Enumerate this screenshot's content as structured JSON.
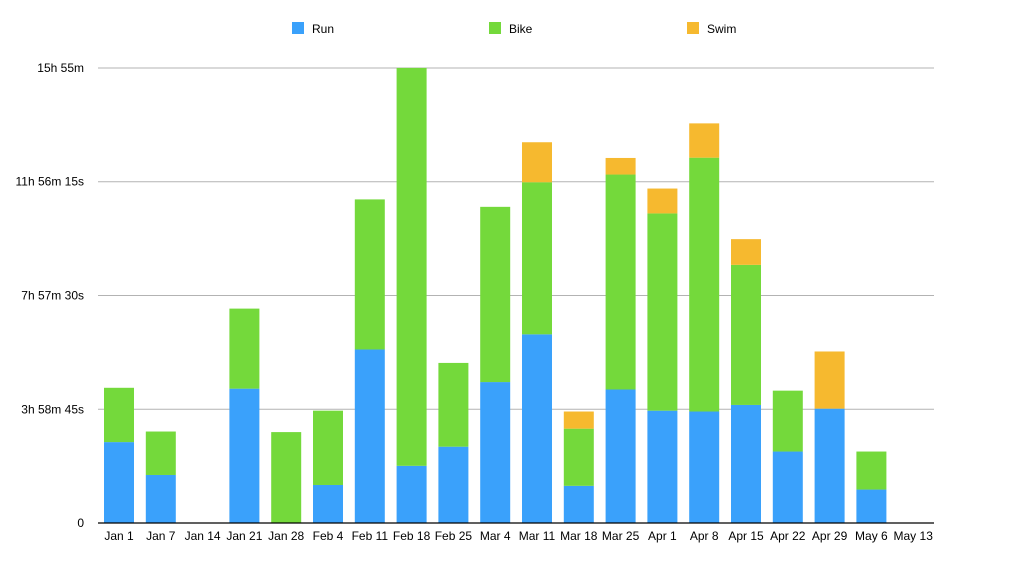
{
  "chart_data": {
    "type": "bar",
    "stacked": true,
    "categories": [
      "Jan 1",
      "Jan 7",
      "Jan 14",
      "Jan 21",
      "Jan 28",
      "Feb 4",
      "Feb 11",
      "Feb 18",
      "Feb 25",
      "Mar 4",
      "Mar 11",
      "Mar 18",
      "Mar 25",
      "Apr 1",
      "Apr 8",
      "Apr 15",
      "Apr 22",
      "Apr 29",
      "May 6",
      "May 13"
    ],
    "series": [
      {
        "name": "Run",
        "color": "#3aa1fb",
        "values": [
          2.83,
          1.68,
          0,
          4.7,
          0,
          1.33,
          6.07,
          2.0,
          2.67,
          4.93,
          6.6,
          1.3,
          4.67,
          3.93,
          3.9,
          4.13,
          2.5,
          4.0,
          1.17,
          0
        ]
      },
      {
        "name": "Bike",
        "color": "#74d93b",
        "values": [
          1.9,
          1.52,
          0,
          2.8,
          3.18,
          2.6,
          5.25,
          13.92,
          2.93,
          6.13,
          5.32,
          2.0,
          7.52,
          6.9,
          8.88,
          4.9,
          2.13,
          0,
          1.33,
          0
        ]
      },
      {
        "name": "Swim",
        "color": "#f6b92f",
        "values": [
          0,
          0,
          0,
          0,
          0,
          0,
          0,
          0,
          0,
          0,
          1.4,
          0.6,
          0.58,
          0.87,
          1.2,
          0.9,
          0,
          2.0,
          0,
          0
        ]
      }
    ],
    "value_unit": "hours",
    "yticks": [
      {
        "value": 0,
        "label": "0"
      },
      {
        "value": 3.979,
        "label": "3h 58m 45s"
      },
      {
        "value": 7.958,
        "label": "7h 57m 30s"
      },
      {
        "value": 11.938,
        "label": "11h 56m 15s"
      },
      {
        "value": 15.917,
        "label": "15h 55m"
      }
    ],
    "ylim": [
      0,
      15.917
    ],
    "grid": true,
    "legend_position": "top"
  }
}
